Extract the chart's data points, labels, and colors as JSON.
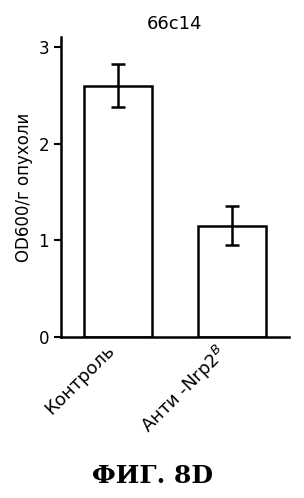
{
  "title": "66c14",
  "categories": [
    "Контроль",
    "Анти -Nrp2$^B$"
  ],
  "values": [
    2.6,
    1.15
  ],
  "errors": [
    0.22,
    0.2
  ],
  "ylabel": "OD600/г опухоли",
  "ylim": [
    0,
    3.1
  ],
  "yticks": [
    0,
    1,
    2,
    3
  ],
  "bar_color": "#ffffff",
  "bar_edgecolor": "#000000",
  "bar_width": 0.6,
  "caption": "ФИГ. 8D",
  "title_fontsize": 13,
  "ylabel_fontsize": 12,
  "tick_fontsize": 12,
  "caption_fontsize": 18,
  "xtick_fontsize": 13
}
